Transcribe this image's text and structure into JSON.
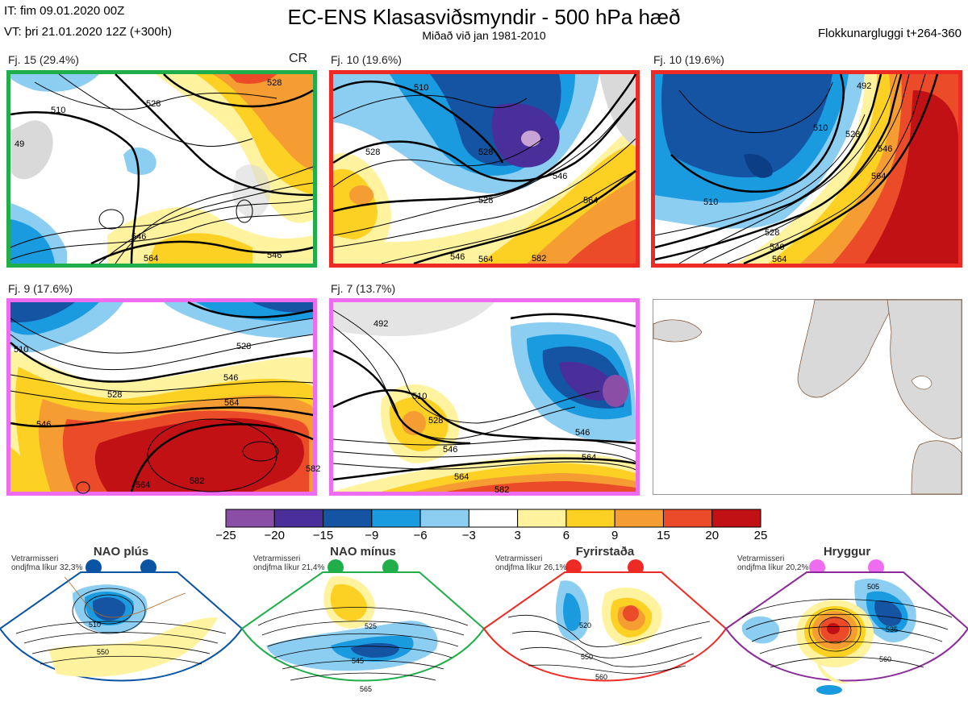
{
  "header": {
    "it_line": "IT: fim 09.01.2020 00Z",
    "vt_line": "VT: þri 21.01.2020 12Z  (+300h)",
    "title": "EC-ENS Klasasviðsmyndir - 500 hPa hæð",
    "subtitle": "Miðað við jan 1981-2010",
    "window": "Flokkunargluggi t+264-360"
  },
  "panels": [
    {
      "label": "Fj. 15 (29.4%)",
      "tag": "CR",
      "border": "#1fae4a"
    },
    {
      "label": "Fj. 10 (19.6%)",
      "tag": "",
      "border": "#ee2a24"
    },
    {
      "label": "Fj. 10 (19.6%)",
      "tag": "",
      "border": "#ee2a24"
    },
    {
      "label": "Fj. 9 (17.6%)",
      "tag": "",
      "border": "#ee6cf0"
    },
    {
      "label": "Fj. 7 (13.7%)",
      "tag": "",
      "border": "#ee6cf0"
    },
    {
      "label": "",
      "tag": "",
      "border": "#999999"
    }
  ],
  "contour_labels": {
    "p1": [
      "528",
      "510",
      "528",
      "546",
      "546",
      "49",
      "564"
    ],
    "p2": [
      "510",
      "528",
      "528",
      "546",
      "546",
      "564",
      "564",
      "528",
      "582"
    ],
    "p3": [
      "492",
      "510",
      "528",
      "546",
      "564",
      "510",
      "528",
      "546",
      "564"
    ],
    "p4": [
      "510",
      "528",
      "546",
      "564",
      "528",
      "546",
      "564",
      "582",
      "582"
    ],
    "p5": [
      "492",
      "510",
      "528",
      "546",
      "546",
      "564",
      "564",
      "582"
    ]
  },
  "colorbar": {
    "ticks": [
      "−25",
      "−20",
      "−15",
      "−9",
      "−6",
      "−3",
      "3",
      "6",
      "9",
      "15",
      "20",
      "25"
    ],
    "colors": [
      "#8b4ea6",
      "#4a2f9b",
      "#1454a3",
      "#1a9be0",
      "#8ccdf2",
      "#ffffff",
      "#fff3a0",
      "#fdd024",
      "#f59d32",
      "#ec4b2a",
      "#c11115"
    ]
  },
  "regimes": [
    {
      "title": "NAO plús",
      "note": "Vetrarmisseri ondjfma líkur 32,3%",
      "color": "#0b54a3",
      "labels": [
        "510",
        "550"
      ]
    },
    {
      "title": "NAO mínus",
      "note": "Vetrarmisseri ondjfma líkur 21,4%",
      "color": "#1fae4a",
      "labels": [
        "525",
        "545",
        "565"
      ]
    },
    {
      "title": "Fyrirstaða",
      "note": "Vetrarmisseri ondjfma líkur 26,1%",
      "color": "#ee2a24",
      "labels": [
        "520",
        "550",
        "560"
      ]
    },
    {
      "title": "Hryggur",
      "note": "Vetrarmisseri ondjfma líkur 20,2%",
      "color": "#ee6cf0",
      "labels": [
        "505",
        "535",
        "560"
      ]
    }
  ]
}
